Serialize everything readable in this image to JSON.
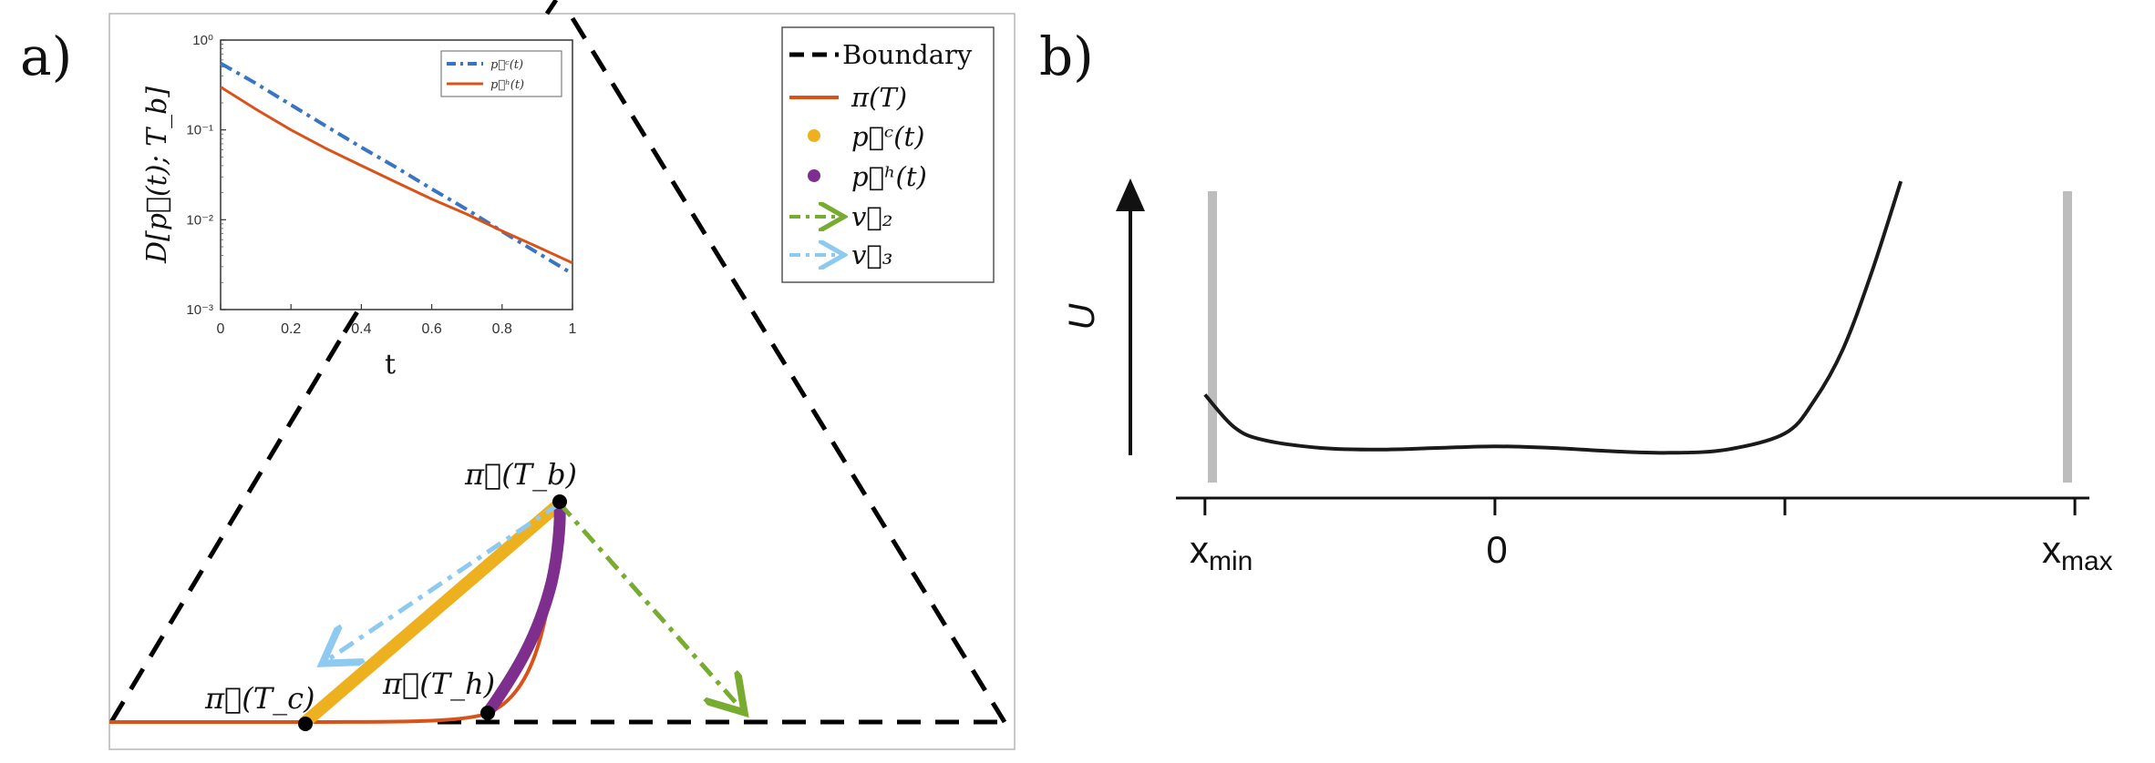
{
  "panel_a": {
    "label": "a)",
    "legend": {
      "entries": [
        {
          "label": "Boundary",
          "color": "#000000",
          "style": "dashed"
        },
        {
          "label": "π(T)",
          "color": "#d95319",
          "style": "solid"
        },
        {
          "label": "p⃗ᶜ(t)",
          "color": "#edb120",
          "style": "dot"
        },
        {
          "label": "p⃗ʰ(t)",
          "color": "#7e2f8e",
          "style": "dot"
        },
        {
          "label": "v⃗₂",
          "color": "#77ac30",
          "style": "dash-arrow"
        },
        {
          "label": "v⃗₃",
          "color": "#4dbeee",
          "style": "dash-arrow"
        }
      ]
    },
    "point_labels": {
      "tb": "π⃗(T_b)",
      "tc": "π⃗(T_c)",
      "th": "π⃗(T_h)"
    },
    "colors": {
      "pi": "#d95319",
      "pc": "#edb120",
      "ph": "#7e2f8e",
      "v2": "#77ac30",
      "v3": "#8ec9f0",
      "boundary": "#000000"
    }
  },
  "chart_data": [
    {
      "type": "line",
      "xlabel": "t",
      "ylabel": "D[p⃗(t); T_b]",
      "xlim": [
        0,
        1
      ],
      "ylim": [
        0.001,
        1
      ],
      "yscale": "log",
      "x_ticks": [
        "0",
        "0.2",
        "0.4",
        "0.6",
        "0.8",
        "1"
      ],
      "y_ticks": [
        "10⁻³",
        "10⁻²",
        "10⁻¹",
        "10⁰"
      ],
      "legend_position": "top-right",
      "series": [
        {
          "name": "p⃗ᶜ(t)",
          "color": "#3a75c4",
          "style": "dash-dot",
          "x": [
            0,
            0.1,
            0.2,
            0.3,
            0.4,
            0.5,
            0.6,
            0.7,
            0.8,
            0.9,
            1.0
          ],
          "y": [
            0.55,
            0.33,
            0.19,
            0.11,
            0.064,
            0.038,
            0.022,
            0.013,
            0.0074,
            0.0043,
            0.0025
          ]
        },
        {
          "name": "p⃗ʰ(t)",
          "color": "#d95319",
          "style": "solid",
          "x": [
            0,
            0.1,
            0.2,
            0.3,
            0.4,
            0.5,
            0.6,
            0.7,
            0.8,
            0.9,
            1.0
          ],
          "y": [
            0.3,
            0.17,
            0.1,
            0.062,
            0.04,
            0.026,
            0.017,
            0.0115,
            0.0075,
            0.005,
            0.0033
          ]
        }
      ]
    },
    {
      "type": "line",
      "ylabel": "U",
      "x_ticks": [
        "x_min",
        "0",
        "x_max"
      ],
      "x_tick_values": [
        -1,
        0,
        2
      ],
      "xlim": [
        -1.1,
        2.05
      ],
      "ylim": [
        0,
        1
      ],
      "series": [
        {
          "color": "#1a1a1a",
          "style": "solid",
          "x": [
            -1.0,
            -0.9,
            -0.8,
            -0.6,
            -0.4,
            -0.2,
            0,
            0.2,
            0.4,
            0.6,
            0.8,
            1.0,
            1.1,
            1.2,
            1.3,
            1.4
          ],
          "y": [
            0.32,
            0.22,
            0.18,
            0.155,
            0.15,
            0.155,
            0.16,
            0.155,
            0.145,
            0.14,
            0.15,
            0.2,
            0.3,
            0.46,
            0.7,
            0.98
          ]
        }
      ],
      "walls": [
        -1,
        2
      ]
    }
  ],
  "panel_b": {
    "label": "b)",
    "wall_color": "#bdbdbd",
    "curve_color": "#1a1a1a",
    "tick_min_main": "x",
    "tick_min_sub": "min",
    "tick_zero": "0",
    "tick_max_main": "x",
    "tick_max_sub": "max"
  }
}
